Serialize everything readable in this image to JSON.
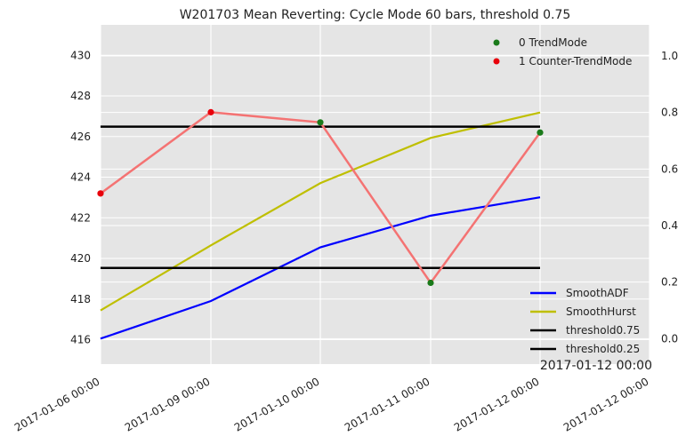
{
  "chart_data": {
    "type": "line",
    "title": "W201703 Mean Reverting: Cycle Mode 60 bars, threshold 0.75",
    "x": [
      "2017-01-06 00:00",
      "2017-01-09 00:00",
      "2017-01-10 00:00",
      "2017-01-11 00:00",
      "2017-01-12 00:00"
    ],
    "x_tick_labels": [
      "2017-01-06 00:00",
      "2017-01-09 00:00",
      "2017-01-10 00:00",
      "2017-01-11 00:00",
      "2017-01-12 00:00",
      "2017-01-12 00:00"
    ],
    "corner_label": "2017-01-12 00:00",
    "ylim_left": [
      414.8,
      431.5
    ],
    "yticks_left": [
      416,
      418,
      420,
      422,
      424,
      426,
      428,
      430
    ],
    "ylim_right": [
      -0.09,
      1.11
    ],
    "yticks_right": [
      0.0,
      0.2,
      0.4,
      0.6,
      0.8,
      1.0
    ],
    "grid": true,
    "price_line": {
      "color": "#f47373",
      "values": [
        423.2,
        427.2,
        426.7,
        418.8,
        426.2
      ]
    },
    "scatter": [
      {
        "name": "0 TrendMode",
        "color": "#1a7a1a",
        "x_index": [
          2,
          3,
          4
        ],
        "y": [
          426.7,
          418.8,
          426.2
        ]
      },
      {
        "name": "1 Counter-TrendMode",
        "color": "#e8000b",
        "x_index": [
          0,
          1
        ],
        "y": [
          423.2,
          427.2
        ]
      }
    ],
    "series": [
      {
        "name": "SmoothADF",
        "color": "#0000ff",
        "axis": "right",
        "values": [
          0.0,
          0.133,
          0.323,
          0.435,
          0.5
        ]
      },
      {
        "name": "SmoothHurst",
        "color": "#bfbf00",
        "axis": "right",
        "values": [
          0.1,
          0.33,
          0.55,
          0.71,
          0.8
        ]
      },
      {
        "name": "threshold0.75",
        "color": "#000000",
        "axis": "right",
        "values": [
          0.75,
          0.75,
          0.75,
          0.75,
          0.75
        ]
      },
      {
        "name": "threshold0.25",
        "color": "#000000",
        "axis": "right",
        "values": [
          0.25,
          0.25,
          0.25,
          0.25,
          0.25
        ]
      }
    ],
    "legend_top": "top-right",
    "legend_bottom": "bottom-right",
    "colors": {
      "plot_bg": "#e5e5e5",
      "grid": "#ffffff"
    }
  }
}
